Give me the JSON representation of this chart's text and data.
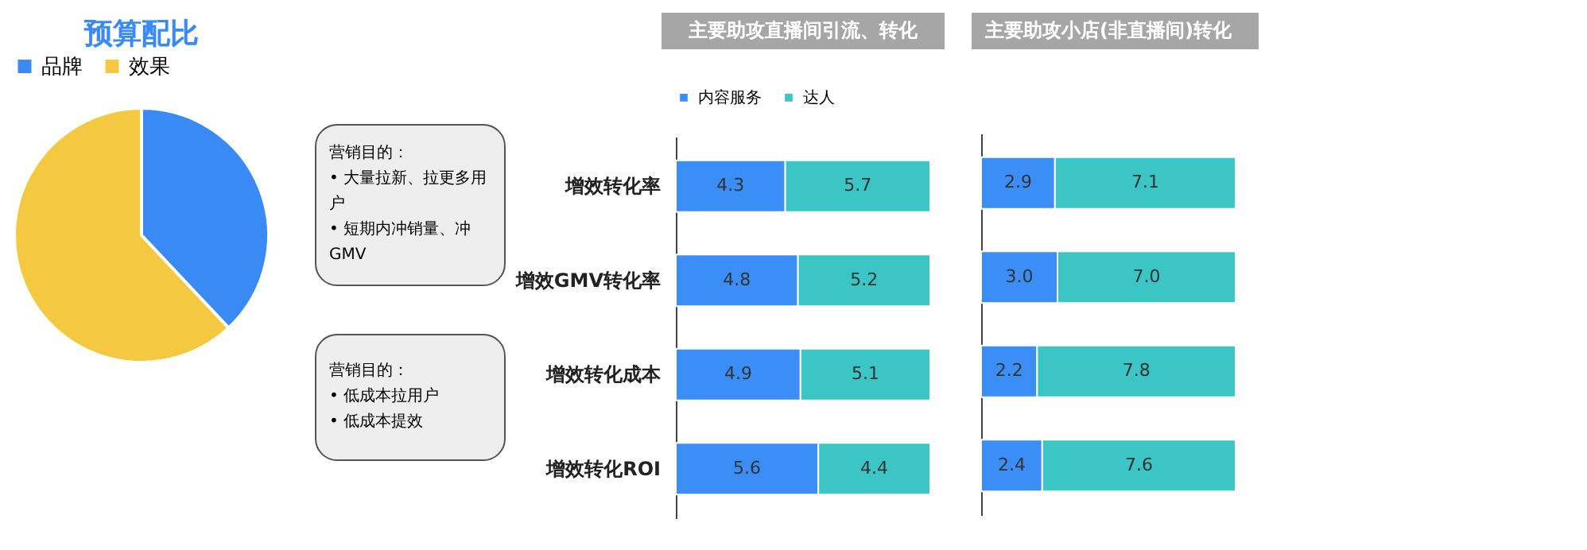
{
  "chart_data": [
    {
      "type": "pie",
      "title": "预算配比",
      "categories": [
        "品牌",
        "效果"
      ],
      "values": [
        38,
        62
      ],
      "colors": [
        "#3a8af5",
        "#f5c842"
      ],
      "legend": "top"
    },
    {
      "type": "bar",
      "orientation": "horizontal",
      "stacked": true,
      "title": "主要助攻直播间引流、转化",
      "categories": [
        "增效转化率",
        "增效GMV转化率",
        "增效转化成本",
        "增效转化ROI"
      ],
      "series": [
        {
          "name": "内容服务",
          "color": "#3a8ef6",
          "values": [
            4.3,
            4.8,
            4.9,
            5.6
          ]
        },
        {
          "name": "达人",
          "color": "#3cc5c5",
          "values": [
            5.7,
            5.2,
            5.1,
            4.4
          ]
        }
      ],
      "data_labels": true,
      "legend": "top",
      "tick_labels": "y",
      "annotations": [
        "营销目的：\n• 大量拉新、拉更多用户\n• 短期内冲销量、冲GMV",
        "营销目的：\n• 低成本拉用户\n• 低成本提效"
      ]
    },
    {
      "type": "bar",
      "orientation": "horizontal",
      "stacked": true,
      "title": "主要助攻小店(非直播间)转化",
      "categories": [
        null,
        null,
        null,
        null
      ],
      "series": [
        {
          "color": "#3a8ef6",
          "values": [
            2.9,
            3.0,
            2.2,
            2.4
          ],
          "value_labels": [
            "2.9",
            "3.0",
            "2.2",
            "2.4"
          ]
        },
        {
          "color": "#3cc5c5",
          "values": [
            7.1,
            7.0,
            7.8,
            7.6
          ],
          "value_labels": [
            "7.1",
            "7.0",
            "7.8",
            "7.6"
          ]
        }
      ],
      "tick_labels": false
    }
  ]
}
